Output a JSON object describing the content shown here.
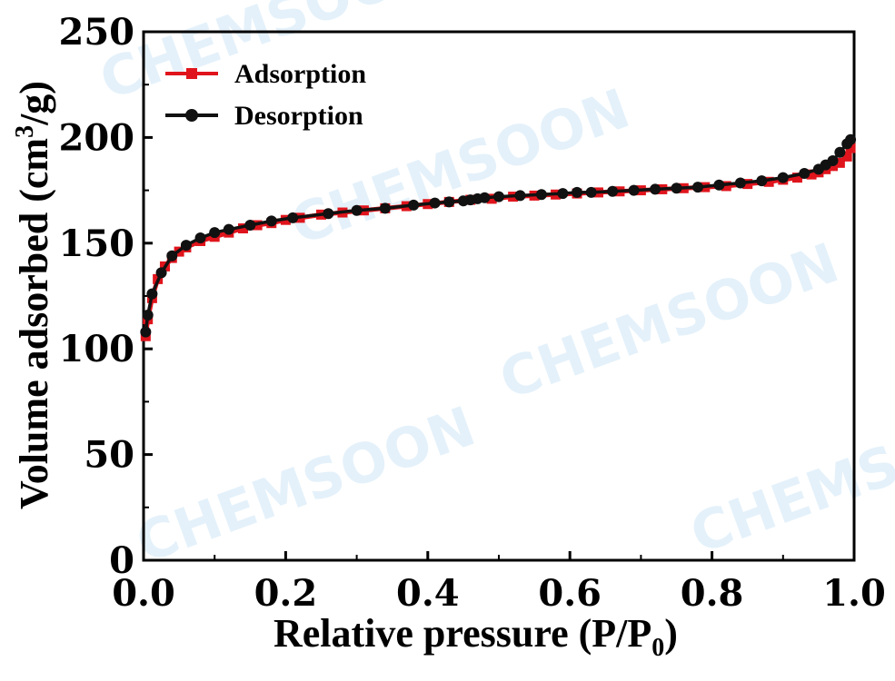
{
  "chart_data": {
    "type": "line",
    "xlabel": "Relative pressure  (P/P",
    "xlabel_sub": "0",
    "xlabel_suffix": ")",
    "ylabel": "Volume adsorbed (cm",
    "ylabel_sup": "3",
    "ylabel_suffix": "/g)",
    "xlim": [
      0.0,
      1.0
    ],
    "ylim": [
      0,
      250
    ],
    "xticks": [
      "0.0",
      "0.2",
      "0.4",
      "0.6",
      "0.8",
      "1.0"
    ],
    "yticks": [
      "0",
      "50",
      "100",
      "150",
      "200",
      "250"
    ],
    "legend_position": "top-left",
    "watermark": "CHEMSOON",
    "series": [
      {
        "name": "Adsorption",
        "color": "#e0141c",
        "marker": "square",
        "x": [
          0.003,
          0.006,
          0.012,
          0.02,
          0.03,
          0.04,
          0.05,
          0.06,
          0.08,
          0.1,
          0.12,
          0.14,
          0.16,
          0.18,
          0.2,
          0.22,
          0.25,
          0.28,
          0.31,
          0.34,
          0.37,
          0.4,
          0.43,
          0.46,
          0.49,
          0.52,
          0.55,
          0.58,
          0.61,
          0.64,
          0.67,
          0.7,
          0.73,
          0.76,
          0.79,
          0.82,
          0.85,
          0.88,
          0.9,
          0.92,
          0.94,
          0.95,
          0.96,
          0.97,
          0.98,
          0.99,
          0.995
        ],
        "y": [
          106,
          114,
          124,
          133,
          139,
          143,
          146,
          148,
          151,
          153,
          155,
          157,
          158.5,
          159.5,
          161,
          162,
          163.5,
          164.5,
          165.5,
          166.5,
          167.5,
          168.5,
          169.5,
          170.5,
          171,
          172,
          172.5,
          173,
          173.5,
          174,
          174.5,
          175,
          175.5,
          176,
          176.5,
          177,
          178,
          179,
          180,
          181,
          182.5,
          183.5,
          185,
          186.5,
          188,
          191,
          195
        ]
      },
      {
        "name": "Desorption",
        "color": "#111111",
        "marker": "circle",
        "x": [
          0.995,
          0.99,
          0.98,
          0.97,
          0.96,
          0.95,
          0.93,
          0.9,
          0.87,
          0.84,
          0.81,
          0.78,
          0.75,
          0.72,
          0.69,
          0.66,
          0.63,
          0.61,
          0.59,
          0.56,
          0.53,
          0.5,
          0.48,
          0.47,
          0.46,
          0.45,
          0.43,
          0.41,
          0.38,
          0.34,
          0.3,
          0.26,
          0.21,
          0.18,
          0.15,
          0.12,
          0.1,
          0.08,
          0.06,
          0.04,
          0.025,
          0.012,
          0.006,
          0.003
        ],
        "y": [
          199,
          197,
          193,
          189,
          187,
          185,
          183,
          181,
          179.5,
          178.5,
          177.5,
          176.5,
          176,
          175.5,
          175,
          174.5,
          174,
          174,
          173.5,
          173,
          172.5,
          172,
          171.5,
          171,
          170.5,
          170,
          169.5,
          169,
          168,
          166.5,
          165.5,
          164,
          162,
          160.5,
          158.5,
          156.5,
          155,
          152.5,
          149,
          144,
          136,
          126,
          116,
          108
        ]
      }
    ]
  }
}
